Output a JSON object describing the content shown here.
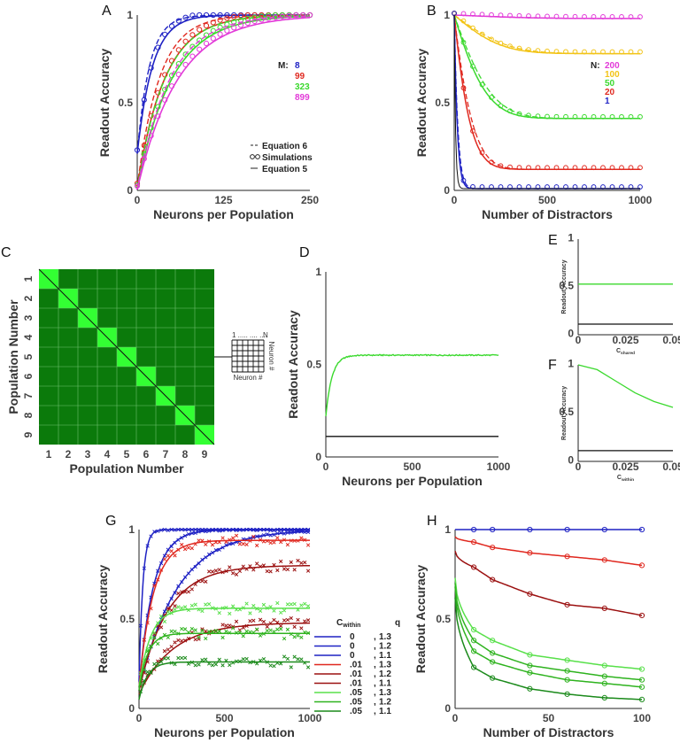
{
  "colors": {
    "blue": "#1f22c4",
    "red": "#e0281f",
    "green": "#3bd92e",
    "magenta": "#e23ad8",
    "yellow": "#f2c418",
    "darkred": "#9b1010",
    "lightgreen": "#58e04a",
    "midgreen": "#2fb31f",
    "darkgreen": "#1b8a1b",
    "black": "#111111",
    "heat_dark": "#0b7a0b",
    "heat_light": "#33ff33"
  },
  "chart_data": [
    {
      "panel": "A",
      "type": "line",
      "xlabel": "Neurons per Population",
      "ylabel": "Readout Accuracy",
      "xlim": [
        0,
        250
      ],
      "ylim": [
        0,
        1
      ],
      "xticks": [
        "0",
        "125",
        "250"
      ],
      "yticks": [
        "0",
        "0.5",
        "1"
      ],
      "legend_title": "M:",
      "series": [
        {
          "name": "8",
          "color": "blue",
          "k": 0.045,
          "b0": 0.21,
          "sim_offset": -0.01
        },
        {
          "name": "99",
          "color": "red",
          "k": 0.025,
          "b0": 0.02,
          "sim_offset": -0.015
        },
        {
          "name": "323",
          "color": "green",
          "k": 0.02,
          "b0": 0.01,
          "sim_offset": -0.015
        },
        {
          "name": "899",
          "color": "magenta",
          "k": 0.017,
          "b0": 0.005,
          "sim_offset": -0.015
        }
      ],
      "style_legend": [
        "Equation 6",
        "Simulations",
        "Equation 5"
      ]
    },
    {
      "panel": "B",
      "type": "line",
      "xlabel": "Number of Distractors",
      "ylabel": "Readout Accuracy",
      "xlim": [
        0,
        1000
      ],
      "ylim": [
        0,
        1
      ],
      "xticks": [
        "0",
        "500",
        "1000"
      ],
      "yticks": [
        "0",
        "0.5",
        "1"
      ],
      "legend_title": "N:",
      "series": [
        {
          "name": "200",
          "color": "magenta",
          "final": 0.98,
          "rate": 0.002
        },
        {
          "name": "100",
          "color": "yellow",
          "final": 0.78,
          "rate": 0.004
        },
        {
          "name": "50",
          "color": "green",
          "final": 0.41,
          "rate": 0.006
        },
        {
          "name": "20",
          "color": "red",
          "final": 0.12,
          "rate": 0.012
        },
        {
          "name": "1",
          "color": "blue",
          "final": 0.01,
          "rate": 0.06
        }
      ]
    },
    {
      "panel": "C",
      "type": "heatmap",
      "xlabel": "Population Number",
      "ylabel": "Population Number",
      "categories": [
        "1",
        "2",
        "3",
        "4",
        "5",
        "6",
        "7",
        "8",
        "9"
      ],
      "inset_labels": {
        "top_left": "1 ..... .... ....",
        "top_right": "N",
        "bottom": "Neuron #",
        "side": "Neuron #"
      }
    },
    {
      "panel": "D",
      "type": "line",
      "xlabel": "Neurons per Population",
      "ylabel": "Readout Accuracy",
      "xlim": [
        0,
        1000
      ],
      "ylim": [
        0,
        1
      ],
      "xticks": [
        "0",
        "500",
        "1000"
      ],
      "yticks": [
        "0",
        "0.5",
        "1"
      ],
      "series": [
        {
          "name": "simulation",
          "color": "green",
          "plateau": 0.55,
          "b0": 0.22
        },
        {
          "name": "chance",
          "color": "black",
          "value": 0.111
        }
      ]
    },
    {
      "panel": "E",
      "type": "line",
      "xlabel": "C",
      "xlabel_sub": "shared",
      "ylabel": "Readout Accuracy",
      "xlim": [
        0,
        0.05
      ],
      "ylim": [
        0,
        1
      ],
      "xticks": [
        "0",
        "0.025",
        "0.05"
      ],
      "yticks": [
        "0",
        "0.5",
        "1"
      ],
      "series": [
        {
          "name": "accuracy",
          "color": "green",
          "value": 0.53
        },
        {
          "name": "chance",
          "color": "black",
          "value": 0.111
        }
      ]
    },
    {
      "panel": "F",
      "type": "line",
      "xlabel": "C",
      "xlabel_sub": "within",
      "ylabel": "Readout Accuracy",
      "xlim": [
        0,
        0.05
      ],
      "ylim": [
        0,
        1
      ],
      "xticks": [
        "0",
        "0.025",
        "0.05"
      ],
      "yticks": [
        "0",
        "0.5",
        "1"
      ],
      "series": [
        {
          "name": "accuracy",
          "color": "green",
          "x": [
            0,
            0.01,
            0.02,
            0.03,
            0.04,
            0.05
          ],
          "y": [
            1.0,
            0.95,
            0.83,
            0.71,
            0.62,
            0.56
          ]
        },
        {
          "name": "chance",
          "color": "black",
          "value": 0.111
        }
      ]
    },
    {
      "panel": "G",
      "type": "line",
      "xlabel": "Neurons per Population",
      "ylabel": "Readout Accuracy",
      "xlim": [
        0,
        1000
      ],
      "ylim": [
        0,
        1
      ],
      "xticks": [
        "0",
        "500",
        "1000"
      ],
      "yticks": [
        "0",
        "0.5",
        "1"
      ],
      "legend_header": {
        "c": "C",
        "sub": "within",
        "q": "q"
      },
      "series": [
        {
          "c": "0",
          "q": "1.3",
          "color": "blue",
          "plateau": 1.0,
          "k": 0.045,
          "b0": 0.15
        },
        {
          "c": "0",
          "q": "1.2",
          "color": "blue",
          "plateau": 1.0,
          "k": 0.012,
          "b0": 0.12
        },
        {
          "c": "0",
          "q": "1.1",
          "color": "blue",
          "plateau": 1.0,
          "k": 0.0045,
          "b0": 0.1
        },
        {
          "c": ".01",
          "q": "1.3",
          "color": "red",
          "plateau": 0.94,
          "k": 0.012,
          "b0": 0.12
        },
        {
          "c": ".01",
          "q": "1.2",
          "color": "darkred",
          "plateau": 0.8,
          "k": 0.006,
          "b0": 0.1
        },
        {
          "c": ".01",
          "q": "1.1",
          "color": "darkred",
          "plateau": 0.48,
          "k": 0.005,
          "b0": 0.08
        },
        {
          "c": ".05",
          "q": "1.3",
          "color": "lightgreen",
          "plateau": 0.56,
          "k": 0.015,
          "b0": 0.12
        },
        {
          "c": ".05",
          "q": "1.2",
          "color": "midgreen",
          "plateau": 0.42,
          "k": 0.02,
          "b0": 0.1
        },
        {
          "c": ".05",
          "q": "1.1",
          "color": "darkgreen",
          "plateau": 0.26,
          "k": 0.02,
          "b0": 0.05
        }
      ]
    },
    {
      "panel": "H",
      "type": "line",
      "xlabel": "Number of Distractors",
      "ylabel": "Readout Accuracy",
      "xlim": [
        0,
        100
      ],
      "ylim": [
        0,
        1
      ],
      "xticks": [
        "0",
        "50",
        "100"
      ],
      "yticks": [
        "0",
        "0.5",
        "1"
      ],
      "sim_x": [
        10,
        20,
        40,
        60,
        80,
        100
      ],
      "series": [
        {
          "color": "blue",
          "y": [
            1.0,
            1.0,
            1.0,
            1.0,
            1.0,
            1.0
          ],
          "start": 1.0
        },
        {
          "color": "red",
          "y": [
            0.93,
            0.9,
            0.87,
            0.85,
            0.83,
            0.8
          ],
          "start": 0.96
        },
        {
          "color": "darkred",
          "y": [
            0.79,
            0.72,
            0.64,
            0.58,
            0.56,
            0.52
          ],
          "start": 0.88
        },
        {
          "color": "lightgreen",
          "y": [
            0.44,
            0.38,
            0.3,
            0.27,
            0.24,
            0.22
          ],
          "start": 0.73
        },
        {
          "color": "midgreen",
          "y": [
            0.38,
            0.31,
            0.24,
            0.21,
            0.18,
            0.16
          ],
          "start": 0.7
        },
        {
          "color": "midgreen",
          "y": [
            0.32,
            0.26,
            0.2,
            0.16,
            0.14,
            0.12
          ],
          "start": 0.68
        },
        {
          "color": "darkgreen",
          "y": [
            0.23,
            0.17,
            0.11,
            0.08,
            0.06,
            0.05
          ],
          "start": 0.62
        }
      ]
    }
  ]
}
